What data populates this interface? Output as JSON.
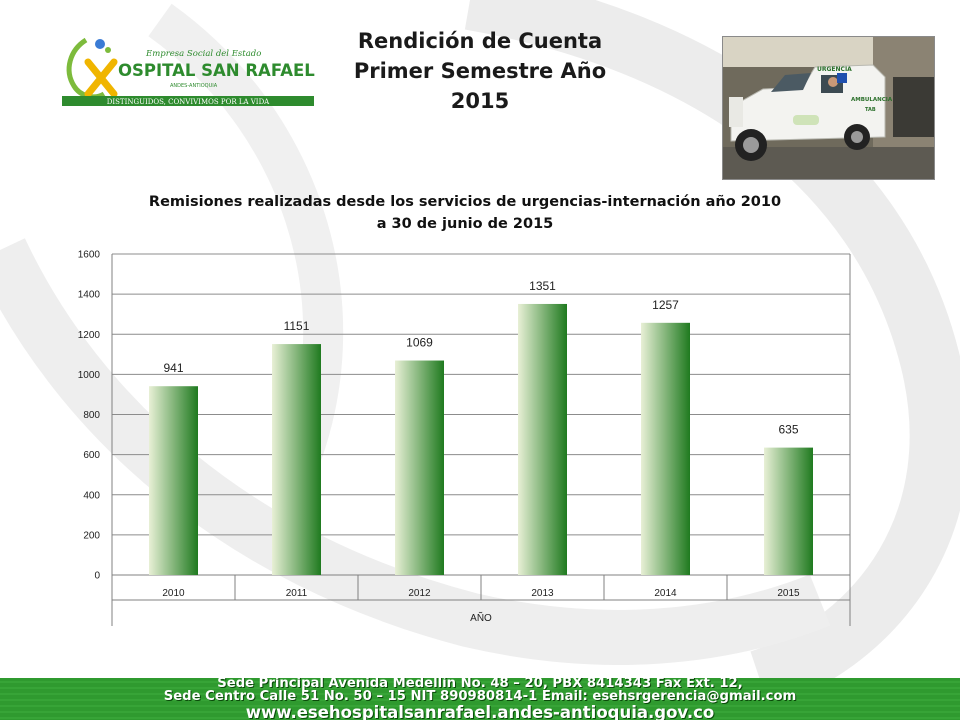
{
  "header": {
    "title_line1": "Rendición de Cuenta",
    "title_line2": "Primer Semestre  Año  2015"
  },
  "logo": {
    "line1": "Empresa Social del Estado",
    "brand": "OSPITAL SAN RAFAEL",
    "location": "ANDES-ANTIOQUIA",
    "motto": "DISTINGUIDOS, CONVIVIMOS POR LA VIDA"
  },
  "photo": {
    "vehicle_text_1": "URGENCIA",
    "vehicle_text_2": "AMBULANCIA",
    "vehicle_text_3": "TAB"
  },
  "chart_data": {
    "type": "bar",
    "title_line1": "Remisiones realizadas desde los servicios de urgencias-internación año 2010",
    "title_line2": "a 30 de junio de 2015",
    "xlabel": "AÑO",
    "ylabel": "",
    "categories": [
      "2010",
      "2011",
      "2012",
      "2013",
      "2014",
      "2015"
    ],
    "values": [
      941,
      1151,
      1069,
      1351,
      1257,
      635
    ],
    "ylim": [
      0,
      1600
    ],
    "yticks": [
      0,
      200,
      400,
      600,
      800,
      1000,
      1200,
      1400,
      1600
    ],
    "grid": true,
    "legend": "none",
    "bar_gradient": [
      "#e8f0d6",
      "#1f7a1f"
    ]
  },
  "footer": {
    "line1": "Sede Principal Avenida Medellín No. 48 – 20, PBX 8414343 Fax Ext. 12,",
    "line2": "Sede Centro Calle 51 No. 50 – 15 NIT 890980814-1 Email: esehsrgerencia@gmail.com",
    "line3": "www.esehospitalsanrafael.andes-antioquia.gov.co"
  },
  "colors": {
    "footer_bg": "#2f9a2f",
    "brand_green": "#2e8b2e",
    "swirl": "#e6e6e6"
  }
}
